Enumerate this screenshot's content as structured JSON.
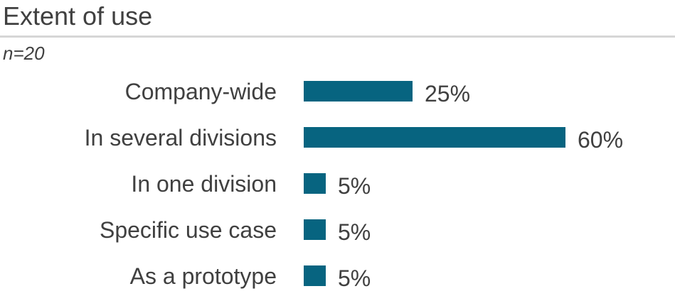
{
  "header": {
    "title": "Extent of use",
    "sample_note": "n=20"
  },
  "colors": {
    "bar": "#076480",
    "text": "#404040",
    "divider": "#d6d6d6"
  },
  "chart_data": {
    "type": "bar",
    "orientation": "horizontal",
    "title": "Extent of use",
    "sample_size": "n=20",
    "categories": [
      "Company-wide",
      "In several divisions",
      "In one division",
      "Specific use case",
      "As a prototype"
    ],
    "values": [
      25,
      60,
      5,
      5,
      5
    ],
    "value_labels": [
      "25%",
      "60%",
      "5%",
      "5%",
      "5%"
    ],
    "unit": "%",
    "xlim": [
      0,
      100
    ],
    "grid": false,
    "legend": false,
    "bar_color": "#076480",
    "value_label_position": "end-of-bar"
  }
}
